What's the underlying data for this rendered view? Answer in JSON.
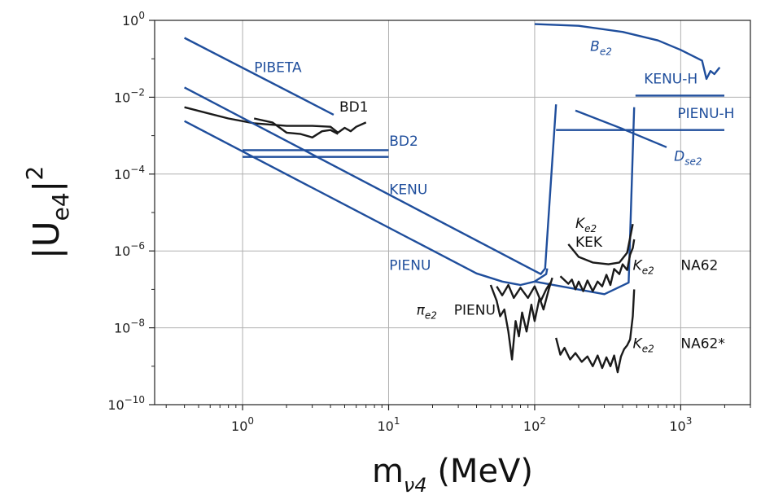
{
  "chart_data": {
    "type": "line",
    "xscale": "log",
    "yscale": "log",
    "xlim": [
      0.25,
      3000
    ],
    "ylim": [
      1e-10,
      1
    ],
    "grid": true,
    "xlabel": {
      "main": "m",
      "sub": "ν4",
      "tail": " (MeV)"
    },
    "ylabel": {
      "main": "|U",
      "sub": "e4",
      "tail": "|",
      "sup": "2"
    },
    "x_ticks": [
      {
        "value": 1,
        "base": "10",
        "exp": "0"
      },
      {
        "value": 10,
        "base": "10",
        "exp": "1"
      },
      {
        "value": 100,
        "base": "10",
        "exp": "2"
      },
      {
        "value": 1000,
        "base": "10",
        "exp": "3"
      }
    ],
    "y_ticks": [
      {
        "value": 1,
        "base": "10",
        "exp": "0"
      },
      {
        "value": 0.01,
        "base": "10",
        "exp": "−2"
      },
      {
        "value": 0.0001,
        "base": "10",
        "exp": "−4"
      },
      {
        "value": 1e-06,
        "base": "10",
        "exp": "−6"
      },
      {
        "value": 1e-08,
        "base": "10",
        "exp": "−8"
      },
      {
        "value": 1e-10,
        "base": "10",
        "exp": "−10"
      }
    ],
    "colors": {
      "blue": "#1f4e9c",
      "black": "#1a1a1a",
      "grid": "#b0b0b0"
    },
    "series": [
      {
        "name": "PIBETA",
        "color": "blue",
        "points": [
          [
            0.4,
            0.35
          ],
          [
            4.2,
            0.0035
          ]
        ]
      },
      {
        "name": "BD1",
        "color": "black",
        "points": [
          [
            0.4,
            0.0055
          ],
          [
            0.8,
            0.0028
          ],
          [
            1.2,
            0.0021
          ],
          [
            2.0,
            0.0018
          ],
          [
            3.0,
            0.0018
          ],
          [
            4.0,
            0.0017
          ],
          [
            4.5,
            0.0012
          ],
          [
            5.0,
            0.0016
          ],
          [
            5.5,
            0.0013
          ],
          [
            6.0,
            0.0017
          ],
          [
            7.0,
            0.0022
          ]
        ]
      },
      {
        "name": "",
        "color": "black",
        "points": [
          [
            1.2,
            0.0028
          ],
          [
            1.6,
            0.0022
          ],
          [
            2.0,
            0.0012
          ],
          [
            2.5,
            0.0011
          ],
          [
            3.0,
            0.0009
          ],
          [
            3.5,
            0.0013
          ],
          [
            4.0,
            0.0014
          ],
          [
            4.5,
            0.0011
          ]
        ]
      },
      {
        "name": "BD2",
        "color": "blue",
        "points": [
          [
            1.0,
            0.00042
          ],
          [
            10,
            0.00042
          ]
        ]
      },
      {
        "name": "",
        "color": "blue",
        "points": [
          [
            1.0,
            0.00028
          ],
          [
            10,
            0.00028
          ]
        ]
      },
      {
        "name": "KENU",
        "color": "blue",
        "points": [
          [
            0.4,
            0.018
          ],
          [
            110,
            2.5e-07
          ],
          [
            118,
            3.5e-07
          ],
          [
            140,
            0.0065
          ]
        ]
      },
      {
        "name": "PIENU",
        "color": "blue",
        "points": [
          [
            0.4,
            0.0024
          ],
          [
            40,
            2.6e-07
          ],
          [
            60,
            1.6e-07
          ],
          [
            80,
            1.3e-07
          ],
          [
            100,
            1.6e-07
          ],
          [
            120,
            2.5e-07
          ],
          [
            122,
            3.5e-07
          ]
        ]
      },
      {
        "name": "",
        "color": "blue",
        "points": [
          [
            100,
            1.6e-07
          ],
          [
            300,
            7.5e-08
          ],
          [
            440,
            1.5e-07
          ],
          [
            480,
            0.0055
          ]
        ]
      },
      {
        "name": "PIENU-H",
        "color": "blue",
        "points": [
          [
            140,
            0.0014
          ],
          [
            1990,
            0.0014
          ]
        ]
      },
      {
        "name": "KENU-H",
        "color": "blue",
        "points": [
          [
            490,
            0.011
          ],
          [
            1990,
            0.011
          ]
        ]
      },
      {
        "name": "Be2",
        "color": "blue",
        "points": [
          [
            100,
            0.8
          ],
          [
            200,
            0.72
          ],
          [
            400,
            0.5
          ],
          [
            700,
            0.3
          ],
          [
            1000,
            0.17
          ],
          [
            1400,
            0.09
          ],
          [
            1500,
            0.03
          ],
          [
            1600,
            0.048
          ],
          [
            1700,
            0.04
          ],
          [
            1850,
            0.06
          ]
        ]
      },
      {
        "name": "Dse2",
        "color": "blue",
        "points": [
          [
            190,
            0.0045
          ],
          [
            400,
            0.0015
          ],
          [
            800,
            0.0005
          ]
        ]
      },
      {
        "name": "Ke2 KEK",
        "color": "black",
        "points": [
          [
            170,
            1.5e-06
          ],
          [
            200,
            7e-07
          ],
          [
            250,
            5e-07
          ],
          [
            320,
            4.5e-07
          ],
          [
            380,
            5e-07
          ],
          [
            430,
            9e-07
          ],
          [
            470,
            5e-06
          ]
        ]
      },
      {
        "name": "Ke2 NA62",
        "color": "black",
        "points": [
          [
            150,
            2.2e-07
          ],
          [
            170,
            1.4e-07
          ],
          [
            180,
            1.8e-07
          ],
          [
            190,
            1e-07
          ],
          [
            200,
            1.6e-07
          ],
          [
            215,
            9e-08
          ],
          [
            230,
            1.7e-07
          ],
          [
            250,
            9e-08
          ],
          [
            270,
            1.6e-07
          ],
          [
            290,
            1.2e-07
          ],
          [
            310,
            2.4e-07
          ],
          [
            330,
            1.3e-07
          ],
          [
            350,
            3.4e-07
          ],
          [
            380,
            2.5e-07
          ],
          [
            400,
            4.5e-07
          ],
          [
            430,
            3.2e-07
          ],
          [
            450,
            8e-07
          ],
          [
            470,
            1.2e-06
          ],
          [
            480,
            2e-06
          ]
        ]
      },
      {
        "name": "Ke2 NA62*",
        "color": "black",
        "points": [
          [
            140,
            5.5e-09
          ],
          [
            150,
            2e-09
          ],
          [
            160,
            3e-09
          ],
          [
            175,
            1.5e-09
          ],
          [
            190,
            2.2e-09
          ],
          [
            210,
            1.3e-09
          ],
          [
            230,
            1.8e-09
          ],
          [
            250,
            1e-09
          ],
          [
            270,
            1.9e-09
          ],
          [
            290,
            9e-10
          ],
          [
            310,
            1.7e-09
          ],
          [
            330,
            1e-09
          ],
          [
            350,
            1.9e-09
          ],
          [
            370,
            7e-10
          ],
          [
            390,
            1.8e-09
          ],
          [
            410,
            2.8e-09
          ],
          [
            430,
            3.5e-09
          ],
          [
            450,
            5e-09
          ],
          [
            470,
            2e-08
          ],
          [
            480,
            1e-07
          ]
        ]
      },
      {
        "name": "πe2 PIENU",
        "color": "black",
        "points": [
          [
            50,
            1.3e-07
          ],
          [
            55,
            5e-08
          ],
          [
            58,
            2e-08
          ],
          [
            62,
            3e-08
          ],
          [
            66,
            8e-09
          ],
          [
            70,
            1.5e-09
          ],
          [
            74,
            1.5e-08
          ],
          [
            78,
            6e-09
          ],
          [
            82,
            2.5e-08
          ],
          [
            88,
            8e-09
          ],
          [
            95,
            4e-08
          ],
          [
            100,
            1.5e-08
          ],
          [
            108,
            6e-08
          ],
          [
            115,
            3e-08
          ],
          [
            125,
            1e-07
          ],
          [
            132,
            2e-07
          ]
        ]
      },
      {
        "name": "",
        "color": "black",
        "points": [
          [
            55,
            1.2e-07
          ],
          [
            60,
            7e-08
          ],
          [
            66,
            1.3e-07
          ],
          [
            72,
            6e-08
          ],
          [
            80,
            1.1e-07
          ],
          [
            90,
            6e-08
          ],
          [
            100,
            1.2e-07
          ],
          [
            110,
            5e-08
          ],
          [
            120,
            1e-07
          ],
          [
            128,
            1.5e-07
          ]
        ]
      }
    ],
    "labels": [
      {
        "text": "PIBETA",
        "color": "blue",
        "x": 1.2,
        "y": 0.045
      },
      {
        "text": "BD1",
        "color": "black",
        "x": 4.6,
        "y": 0.0042
      },
      {
        "text": "BD2",
        "color": "blue",
        "x": 10.1,
        "y": 0.00055
      },
      {
        "text": "KENU",
        "color": "blue",
        "x": 10.1,
        "y": 3e-05
      },
      {
        "text": "PIENU",
        "color": "blue",
        "x": 10.1,
        "y": 3.2e-07
      },
      {
        "text": "KEK",
        "color": "black",
        "x": 190,
        "y": 1.3e-06
      },
      {
        "text": "NA62",
        "color": "black",
        "x": 1000,
        "y": 3.2e-07
      },
      {
        "text": "NA62*",
        "color": "black",
        "x": 1000,
        "y": 3e-09
      },
      {
        "text": "PIENU",
        "color": "black",
        "x": 28,
        "y": 2.2e-08
      },
      {
        "text": "KENU-H",
        "color": "blue",
        "x": 560,
        "y": 0.023
      },
      {
        "text": "PIENU-H",
        "color": "blue",
        "x": 950,
        "y": 0.0029
      }
    ],
    "sublabels": [
      {
        "main": "B",
        "sub": "e2",
        "color": "blue",
        "x": 240,
        "y": 0.16
      },
      {
        "main": "K",
        "sub": "e2",
        "color": "black",
        "x": 190,
        "y": 4e-06
      },
      {
        "main": "K",
        "sub": "e2",
        "color": "black",
        "x": 470,
        "y": 3.2e-07
      },
      {
        "main": "K",
        "sub": "e2",
        "color": "black",
        "x": 470,
        "y": 3e-09
      },
      {
        "main": "D",
        "sub": "se2",
        "color": "blue",
        "x": 900,
        "y": 0.00022
      },
      {
        "main": "π",
        "sub": "e2",
        "color": "black",
        "x": 15.5,
        "y": 2.2e-08
      }
    ]
  }
}
